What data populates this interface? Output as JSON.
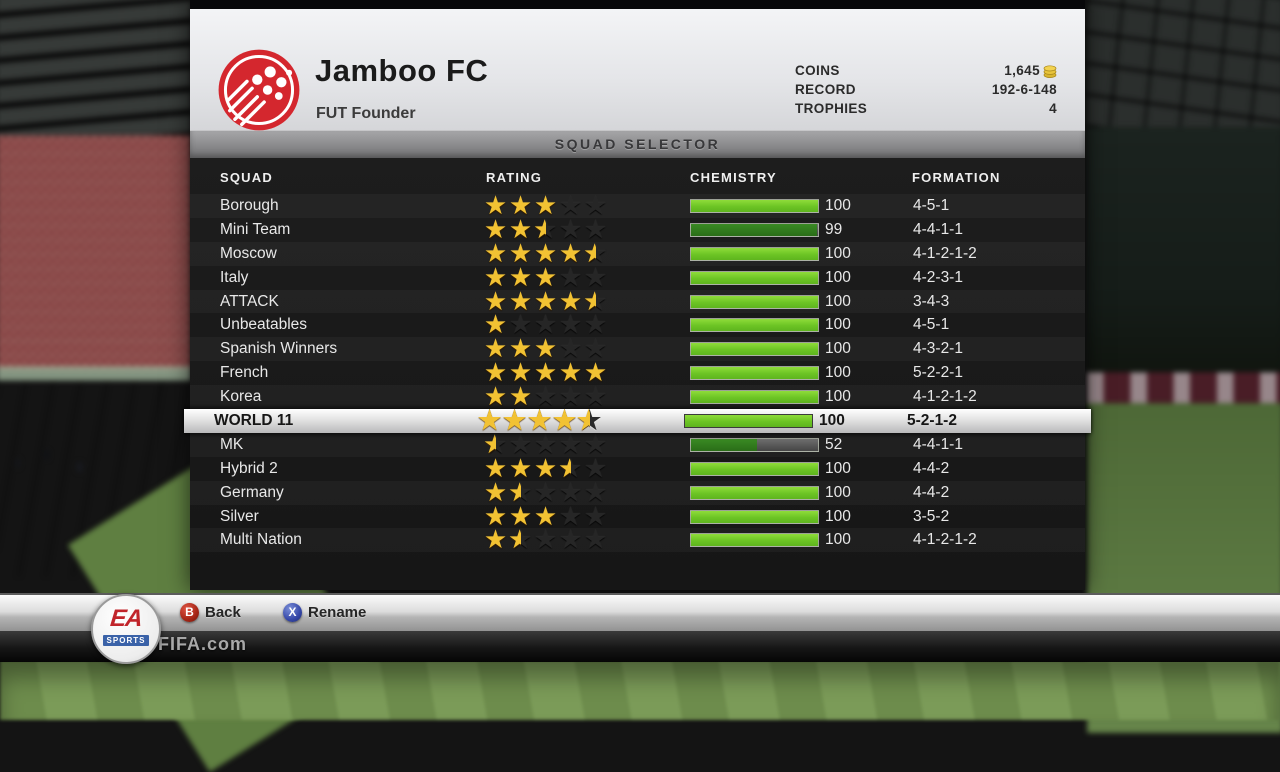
{
  "header": {
    "club_name": "Jamboo FC",
    "club_subtitle": "FUT Founder",
    "stats": [
      {
        "label": "COINS",
        "value": "1,645",
        "icon": "coins"
      },
      {
        "label": "RECORD",
        "value": "192-6-148"
      },
      {
        "label": "TROPHIES",
        "value": "4"
      }
    ]
  },
  "title_bar": {
    "label": "SQUAD SELECTOR"
  },
  "table": {
    "columns": [
      "SQUAD",
      "RATING",
      "CHEMISTRY",
      "FORMATION"
    ],
    "selected_index": 9,
    "rows": [
      {
        "squad": "Borough",
        "rating": 3,
        "chemistry": 100,
        "formation": "4-5-1"
      },
      {
        "squad": "Mini Team",
        "rating": 2.5,
        "chemistry": 99,
        "formation": "4-4-1-1"
      },
      {
        "squad": "Moscow",
        "rating": 4.5,
        "chemistry": 100,
        "formation": "4-1-2-1-2"
      },
      {
        "squad": "Italy",
        "rating": 3,
        "chemistry": 100,
        "formation": "4-2-3-1"
      },
      {
        "squad": "ATTACK",
        "rating": 4.5,
        "chemistry": 100,
        "formation": "3-4-3"
      },
      {
        "squad": "Unbeatables",
        "rating": 1,
        "chemistry": 100,
        "formation": "4-5-1"
      },
      {
        "squad": "Spanish Winners",
        "rating": 3,
        "chemistry": 100,
        "formation": "4-3-2-1"
      },
      {
        "squad": "French",
        "rating": 5,
        "chemistry": 100,
        "formation": "5-2-2-1"
      },
      {
        "squad": "Korea",
        "rating": 2,
        "chemistry": 100,
        "formation": "4-1-2-1-2"
      },
      {
        "squad": "WORLD 11",
        "rating": 4.5,
        "chemistry": 100,
        "formation": "5-2-1-2"
      },
      {
        "squad": "MK",
        "rating": 0.5,
        "chemistry": 52,
        "formation": "4-4-1-1"
      },
      {
        "squad": "Hybrid 2",
        "rating": 3.5,
        "chemistry": 100,
        "formation": "4-4-2"
      },
      {
        "squad": "Germany",
        "rating": 1.5,
        "chemistry": 100,
        "formation": "4-4-2"
      },
      {
        "squad": "Silver",
        "rating": 3,
        "chemistry": 100,
        "formation": "3-5-2"
      },
      {
        "squad": "Multi Nation",
        "rating": 1.5,
        "chemistry": 100,
        "formation": "4-1-2-1-2"
      }
    ]
  },
  "footer": {
    "buttons": [
      {
        "key": "B",
        "label": "Back"
      },
      {
        "key": "X",
        "label": "Rename"
      }
    ],
    "brand": {
      "logo_top": "EA",
      "logo_bottom": "SPORTS",
      "site": "FIFA.com"
    }
  },
  "colors": {
    "chemistry_green": "#6cc424",
    "chemistry_partial_green": "#2f7a1e",
    "star_gold": "#f2c233",
    "crest_red": "#d4272e",
    "coin_gold": "#e8c43c",
    "selector_text": "#38383a"
  }
}
